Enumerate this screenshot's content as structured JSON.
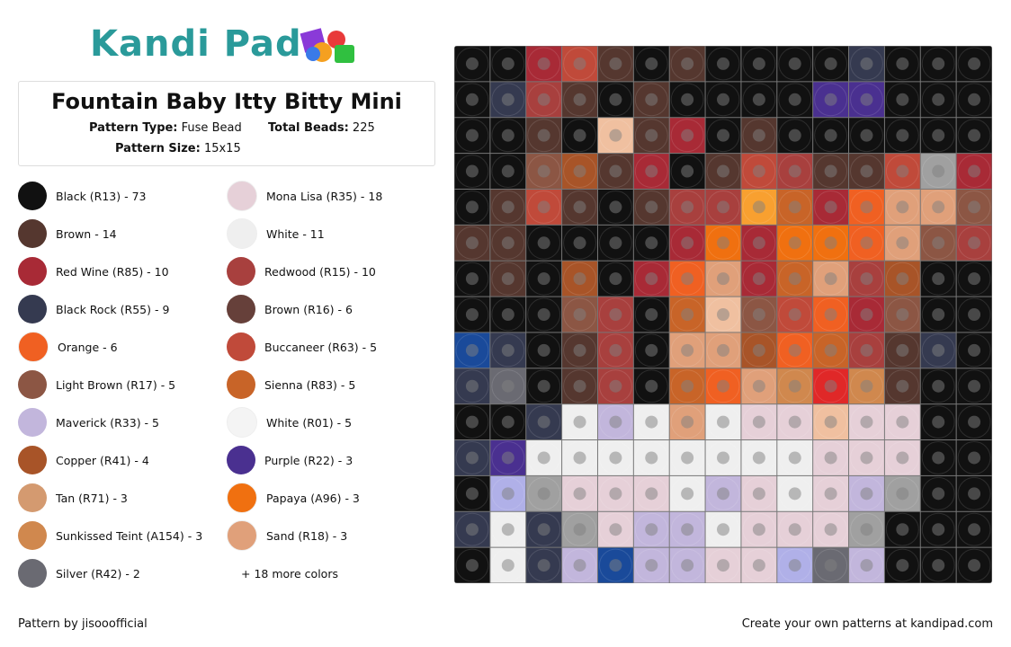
{
  "header": {
    "logo": "Kandi Pad",
    "title": "Fountain Baby Itty Bitty Mini",
    "details": [
      {
        "label": "Pattern Type:",
        "value": "Fuse Bead"
      },
      {
        "label": "Total Beads:",
        "value": "225"
      },
      {
        "label": "Pattern Size:",
        "value": "15x15"
      }
    ]
  },
  "legend": [
    {
      "label": "Black (R13) - 73",
      "color": "#111111"
    },
    {
      "label": "Mona Lisa (R35) - 18",
      "color": "#e6d0d8"
    },
    {
      "label": "Brown - 14",
      "color": "#55372f"
    },
    {
      "label": "White - 11",
      "color": "#efefef"
    },
    {
      "label": "Red Wine (R85) - 10",
      "color": "#a82a36"
    },
    {
      "label": "Redwood (R15) - 10",
      "color": "#a8403e"
    },
    {
      "label": "Black Rock (R55) - 9",
      "color": "#353a50"
    },
    {
      "label": "Brown (R16) - 6",
      "color": "#66403a"
    },
    {
      "label": "Orange - 6",
      "color": "#f06022"
    },
    {
      "label": "Buccaneer (R63) - 5",
      "color": "#c04a3a"
    },
    {
      "label": "Light Brown (R17) - 5",
      "color": "#8c5644"
    },
    {
      "label": "Sienna (R83) - 5",
      "color": "#c86428"
    },
    {
      "label": "Maverick (R33) - 5",
      "color": "#c2b6dc"
    },
    {
      "label": "White (R01) - 5",
      "color": "#f4f4f4"
    },
    {
      "label": "Copper (R41) - 4",
      "color": "#a85428"
    },
    {
      "label": "Purple (R22) - 3",
      "color": "#4a3090"
    },
    {
      "label": "Tan (R71) - 3",
      "color": "#d49a70"
    },
    {
      "label": "Papaya (A96) - 3",
      "color": "#f07010"
    },
    {
      "label": "Sunkissed Teint (A154) - 3",
      "color": "#d0884e"
    },
    {
      "label": "Sand (R18) - 3",
      "color": "#e0a07a"
    },
    {
      "label": "Silver (R42) - 2",
      "color": "#6a6a72"
    }
  ],
  "more_colors": "+ 18 more colors",
  "footer": {
    "credit": "Pattern by jisooofficial",
    "cta": "Create your own patterns at kandipad.com"
  }
}
